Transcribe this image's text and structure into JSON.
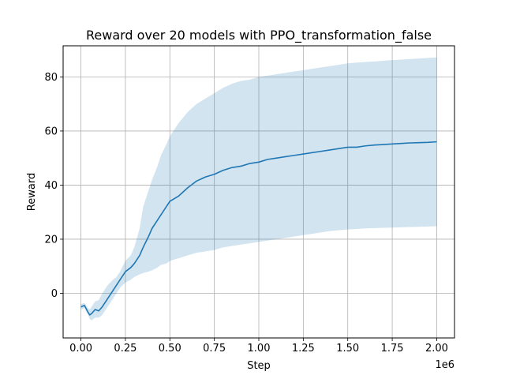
{
  "chart_data": {
    "type": "line",
    "title": "Reward over 20 models with PPO_transformation_false",
    "xlabel": "Step",
    "ylabel": "Reward",
    "x_multiplier_label": "1e6",
    "xlim": [
      -0.1,
      2.1
    ],
    "ylim": [
      -16.5,
      91.5
    ],
    "xticks": [
      0.0,
      0.25,
      0.5,
      0.75,
      1.0,
      1.25,
      1.5,
      1.75,
      2.0
    ],
    "xtick_labels": [
      "0.00",
      "0.25",
      "0.50",
      "0.75",
      "1.00",
      "1.25",
      "1.50",
      "1.75",
      "2.00"
    ],
    "yticks": [
      0,
      20,
      40,
      60,
      80
    ],
    "ytick_labels": [
      "0",
      "20",
      "40",
      "60",
      "80"
    ],
    "grid": true,
    "legend": "none",
    "colors": {
      "line": "#1f77b4",
      "band": "#1f77b4",
      "grid": "#b0b0b0"
    },
    "series": [
      {
        "x": [
          0.0,
          0.02,
          0.04,
          0.05,
          0.06,
          0.08,
          0.1,
          0.12,
          0.15,
          0.18,
          0.2,
          0.22,
          0.25,
          0.28,
          0.3,
          0.33,
          0.35,
          0.38,
          0.4,
          0.43,
          0.45,
          0.48,
          0.5,
          0.55,
          0.6,
          0.65,
          0.7,
          0.75,
          0.8,
          0.85,
          0.9,
          0.95,
          1.0,
          1.05,
          1.1,
          1.15,
          1.2,
          1.25,
          1.3,
          1.35,
          1.4,
          1.45,
          1.5,
          1.55,
          1.6,
          1.65,
          1.7,
          1.75,
          1.8,
          1.85,
          1.9,
          1.95,
          2.0
        ],
        "mean": [
          -5,
          -4.5,
          -7,
          -8,
          -7.5,
          -6,
          -6.5,
          -5,
          -2,
          1,
          3,
          5,
          8,
          9.5,
          11,
          14,
          17,
          21,
          24,
          27,
          29,
          32,
          34,
          36,
          39,
          41.5,
          43,
          44,
          45.5,
          46.5,
          47,
          48,
          48.5,
          49.5,
          50,
          50.5,
          51,
          51.5,
          52,
          52.5,
          53,
          53.5,
          54,
          54,
          54.5,
          54.8,
          55,
          55.2,
          55.4,
          55.6,
          55.7,
          55.8,
          56
        ],
        "lower": [
          -6,
          -5.5,
          -8,
          -9.5,
          -10,
          -9,
          -9,
          -8,
          -5,
          -2,
          0,
          2,
          4,
          5,
          6,
          7,
          7.5,
          8,
          8.5,
          9.5,
          10.5,
          11,
          12,
          13,
          14,
          15,
          15.5,
          16,
          17,
          17.5,
          18,
          18.5,
          19,
          19.5,
          20,
          20.5,
          21,
          21.5,
          22,
          22.5,
          23,
          23.3,
          23.6,
          23.8,
          24,
          24.1,
          24.2,
          24.3,
          24.4,
          24.5,
          24.6,
          24.7,
          24.8
        ],
        "upper": [
          -4,
          -3.5,
          -5.5,
          -6,
          -5,
          -3,
          -2.5,
          0,
          3,
          5,
          6,
          8,
          12,
          14,
          17,
          24,
          32,
          38,
          42,
          47,
          51,
          55,
          58,
          63,
          67,
          70,
          72,
          74,
          76,
          77.5,
          78.5,
          79,
          80,
          80.5,
          81,
          81.5,
          82,
          82.5,
          83,
          83.5,
          84,
          84.5,
          85,
          85.3,
          85.5,
          85.7,
          86,
          86.2,
          86.4,
          86.6,
          86.8,
          87,
          87.2
        ]
      }
    ]
  }
}
